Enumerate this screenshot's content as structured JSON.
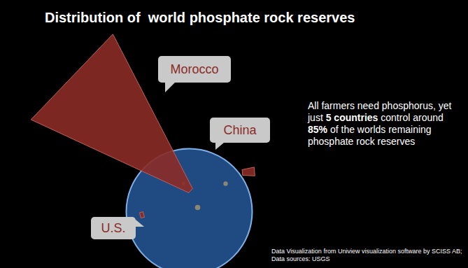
{
  "chart_data": {
    "type": "bar",
    "title": "Distribution of  world phosphate rock reserves",
    "categories": [
      "Morocco",
      "China",
      "U.S."
    ],
    "values": [
      50000,
      3700,
      1100
    ],
    "color": "#8b2b26",
    "tick_labels": false,
    "annotation": "All farmers need phosphorus, yet just 5 countries control around 85% of the worlds remaining phosphate rock reserves",
    "emphasis": [
      "5 countries",
      "85%"
    ],
    "source": [
      "Data Visualization from Uniview visualization software by SCISS AB;",
      "Data sources: USGS"
    ]
  }
}
